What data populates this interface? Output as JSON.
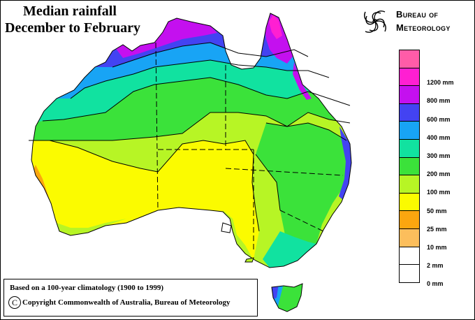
{
  "title": {
    "line1": "Median rainfall",
    "line2": "December to February"
  },
  "logo": {
    "icon": "bureau-swirl-icon",
    "line1": "Bureau of",
    "line2": "Meteorology"
  },
  "legend": {
    "items": [
      {
        "label": "1200 mm",
        "color": "#ff5ca8"
      },
      {
        "label": "1200 mm",
        "color": "#ff1fd2"
      },
      {
        "label": "800 mm",
        "color": "#c410ef"
      },
      {
        "label": "600 mm",
        "color": "#4343f2"
      },
      {
        "label": "400 mm",
        "color": "#18a4f5"
      },
      {
        "label": "300 mm",
        "color": "#11e2a0"
      },
      {
        "label": "200 mm",
        "color": "#3be23a"
      },
      {
        "label": "100 mm",
        "color": "#b7f525"
      },
      {
        "label": "50 mm",
        "color": "#fbfb00"
      },
      {
        "label": "25 mm",
        "color": "#fba60f"
      },
      {
        "label": "10 mm",
        "color": "#fcbe5c"
      },
      {
        "label": "2 mm",
        "color": "#ffffff"
      },
      {
        "label": "0 mm",
        "color": "#ffffff"
      }
    ]
  },
  "info": {
    "line1": "Based on a 100-year climatology (1900 to 1999)",
    "line2": "Copyright Commonwealth of Australia, Bureau of Meteorology",
    "copyright_symbol": "C"
  }
}
